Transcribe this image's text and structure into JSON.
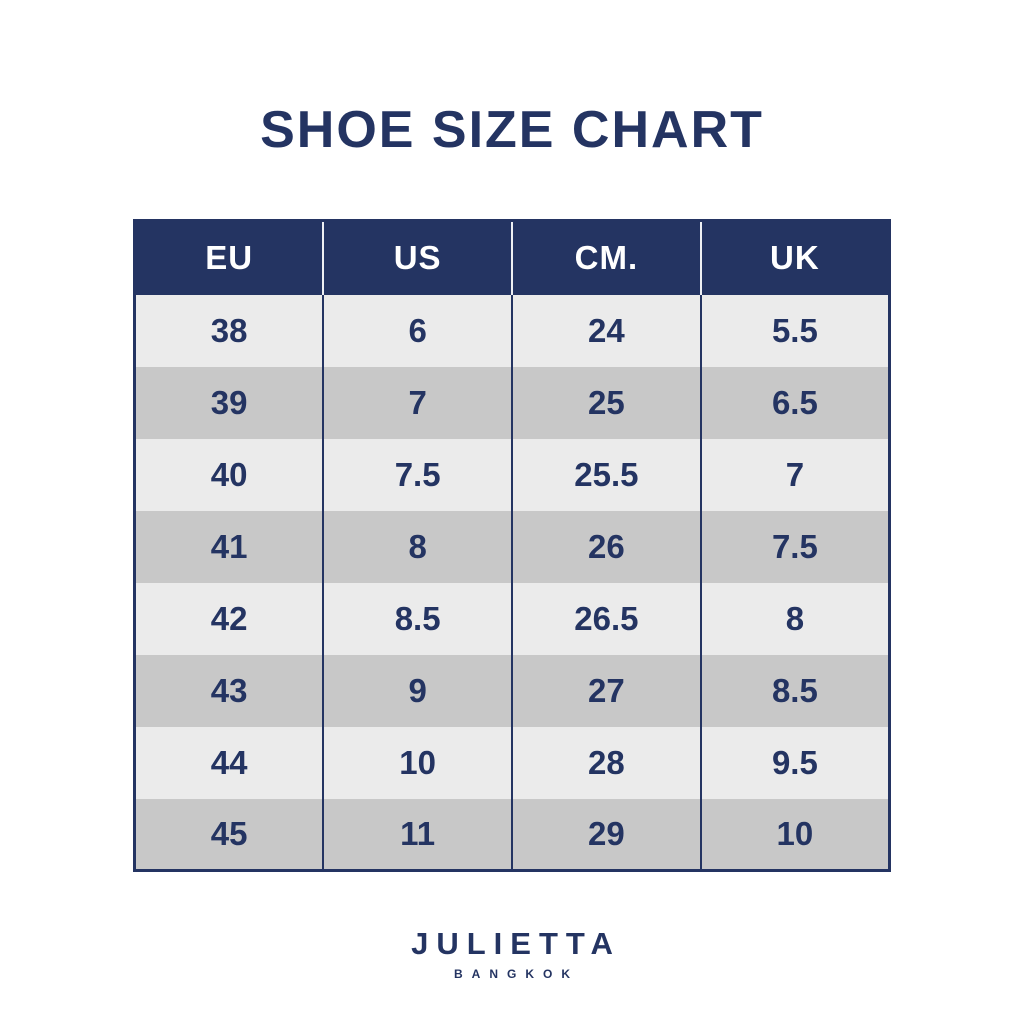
{
  "colors": {
    "background": "#ffffff",
    "navy": "#243462",
    "header_text": "#ffffff",
    "row_light": "#ebebeb",
    "row_dark": "#c8c8c8"
  },
  "title": "SHOE SIZE CHART",
  "chart_data": {
    "type": "table",
    "title": "SHOE SIZE CHART",
    "columns": [
      "EU",
      "US",
      "CM.",
      "UK"
    ],
    "rows": [
      [
        "38",
        "6",
        "24",
        "5.5"
      ],
      [
        "39",
        "7",
        "25",
        "6.5"
      ],
      [
        "40",
        "7.5",
        "25.5",
        "7"
      ],
      [
        "41",
        "8",
        "26",
        "7.5"
      ],
      [
        "42",
        "8.5",
        "26.5",
        "8"
      ],
      [
        "43",
        "9",
        "27",
        "8.5"
      ],
      [
        "44",
        "10",
        "28",
        "9.5"
      ],
      [
        "45",
        "11",
        "29",
        "10"
      ]
    ],
    "layout": {
      "header_background": "#243462",
      "header_text_color": "#ffffff",
      "row_stripe_light": "#ebebeb",
      "row_stripe_dark": "#c8c8c8",
      "grid": "vertical-dividers-only"
    }
  },
  "brand": {
    "name": "JULIETTA",
    "subtitle": "BANGKOK"
  }
}
